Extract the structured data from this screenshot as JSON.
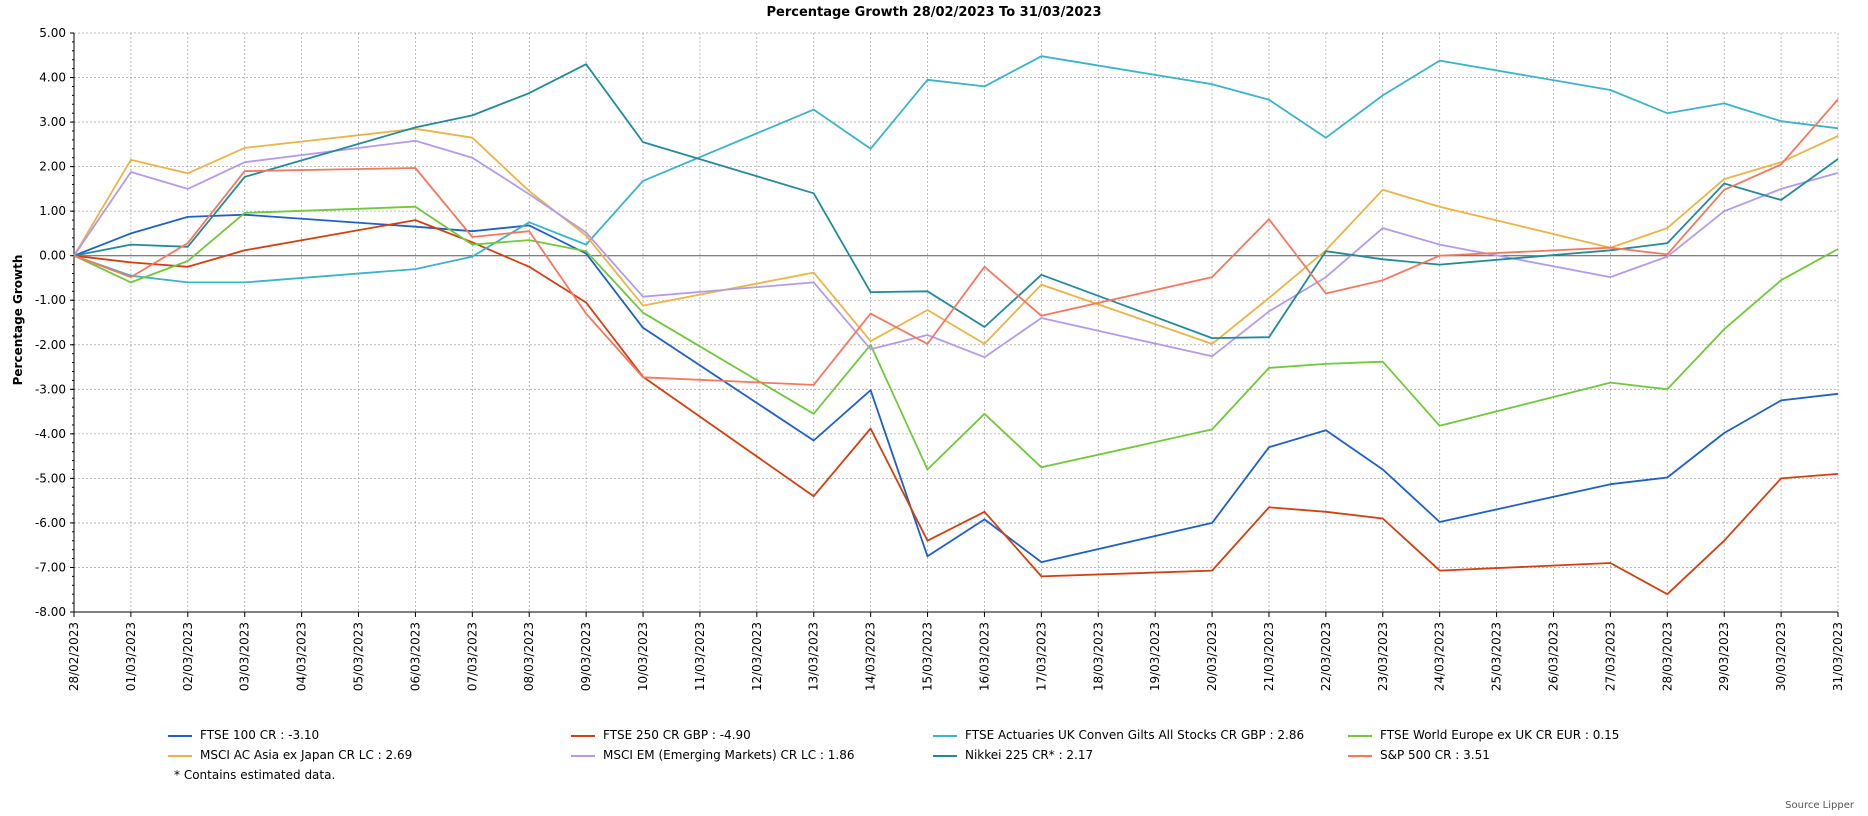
{
  "chart_data": {
    "type": "line",
    "title": "Percentage Growth 28/02/2023 To 31/03/2023",
    "ylabel": "Percentage Growth",
    "xlabel": "",
    "ylim": [
      -8,
      5
    ],
    "yticks": [
      "5.00",
      "4.00",
      "3.00",
      "2.00",
      "1.00",
      "0.00",
      "-1.00",
      "-2.00",
      "-3.00",
      "-4.00",
      "-5.00",
      "-6.00",
      "-7.00",
      "-8.00"
    ],
    "grid": true,
    "legend_position": "bottom",
    "categories": [
      "28/02/2023",
      "01/03/2023",
      "02/03/2023",
      "03/03/2023",
      "04/03/2023",
      "05/03/2023",
      "06/03/2023",
      "07/03/2023",
      "08/03/2023",
      "09/03/2023",
      "10/03/2023",
      "11/03/2023",
      "12/03/2023",
      "13/03/2023",
      "14/03/2023",
      "15/03/2023",
      "16/03/2023",
      "17/03/2023",
      "18/03/2023",
      "19/03/2023",
      "20/03/2023",
      "21/03/2023",
      "22/03/2023",
      "23/03/2023",
      "24/03/2023",
      "25/03/2023",
      "26/03/2023",
      "27/03/2023",
      "28/03/2023",
      "29/03/2023",
      "30/03/2023",
      "31/03/2023"
    ],
    "series": [
      {
        "name": "FTSE 100 CR : -3.10",
        "color": "#1f5fc8",
        "points": [
          [
            0,
            0.0
          ],
          [
            1,
            0.5
          ],
          [
            2,
            0.87
          ],
          [
            3,
            0.92
          ],
          [
            6,
            0.65
          ],
          [
            7,
            0.55
          ],
          [
            8,
            0.68
          ],
          [
            9,
            0.05
          ],
          [
            10,
            -1.62
          ],
          [
            13,
            -4.15
          ],
          [
            14,
            -3.02
          ],
          [
            15,
            -6.75
          ],
          [
            16,
            -5.92
          ],
          [
            17,
            -6.88
          ],
          [
            20,
            -6.0
          ],
          [
            21,
            -4.3
          ],
          [
            22,
            -3.92
          ],
          [
            23,
            -4.8
          ],
          [
            24,
            -5.98
          ],
          [
            27,
            -5.13
          ],
          [
            28,
            -4.98
          ],
          [
            29,
            -3.98
          ],
          [
            30,
            -3.25
          ],
          [
            31,
            -3.1
          ]
        ]
      },
      {
        "name": "FTSE 250 CR GBP : -4.90",
        "color": "#d14010",
        "points": [
          [
            0,
            0.0
          ],
          [
            1,
            -0.15
          ],
          [
            2,
            -0.25
          ],
          [
            3,
            0.12
          ],
          [
            6,
            0.8
          ],
          [
            7,
            0.3
          ],
          [
            8,
            -0.25
          ],
          [
            9,
            -1.05
          ],
          [
            10,
            -2.72
          ],
          [
            13,
            -5.4
          ],
          [
            14,
            -3.88
          ],
          [
            15,
            -6.4
          ],
          [
            16,
            -5.75
          ],
          [
            17,
            -7.2
          ],
          [
            20,
            -7.07
          ],
          [
            21,
            -5.65
          ],
          [
            22,
            -5.75
          ],
          [
            23,
            -5.9
          ],
          [
            24,
            -7.07
          ],
          [
            27,
            -6.9
          ],
          [
            28,
            -7.6
          ],
          [
            29,
            -6.4
          ],
          [
            30,
            -5.0
          ],
          [
            31,
            -4.9
          ]
        ]
      },
      {
        "name": "FTSE Actuaries UK Conven Gilts All Stocks CR GBP : 2.86",
        "color": "#3bb3c8",
        "points": [
          [
            0,
            0.0
          ],
          [
            1,
            -0.45
          ],
          [
            2,
            -0.6
          ],
          [
            3,
            -0.6
          ],
          [
            6,
            -0.3
          ],
          [
            7,
            -0.02
          ],
          [
            8,
            0.75
          ],
          [
            9,
            0.25
          ],
          [
            10,
            1.68
          ],
          [
            13,
            3.28
          ],
          [
            14,
            2.4
          ],
          [
            15,
            3.95
          ],
          [
            16,
            3.8
          ],
          [
            17,
            4.48
          ],
          [
            20,
            3.85
          ],
          [
            21,
            3.5
          ],
          [
            22,
            2.65
          ],
          [
            23,
            3.6
          ],
          [
            24,
            4.38
          ],
          [
            27,
            3.72
          ],
          [
            28,
            3.2
          ],
          [
            29,
            3.42
          ],
          [
            30,
            3.02
          ],
          [
            31,
            2.86
          ]
        ]
      },
      {
        "name": "FTSE World Europe ex UK CR EUR : 0.15",
        "color": "#70c83a",
        "points": [
          [
            0,
            0.0
          ],
          [
            1,
            -0.6
          ],
          [
            2,
            -0.12
          ],
          [
            3,
            0.96
          ],
          [
            6,
            1.1
          ],
          [
            7,
            0.25
          ],
          [
            8,
            0.35
          ],
          [
            9,
            0.1
          ],
          [
            10,
            -1.28
          ],
          [
            13,
            -3.55
          ],
          [
            14,
            -2.0
          ],
          [
            15,
            -4.8
          ],
          [
            16,
            -3.55
          ],
          [
            17,
            -4.75
          ],
          [
            20,
            -3.9
          ],
          [
            21,
            -2.52
          ],
          [
            22,
            -2.43
          ],
          [
            23,
            -2.38
          ],
          [
            24,
            -3.82
          ],
          [
            27,
            -2.85
          ],
          [
            28,
            -3.0
          ],
          [
            29,
            -1.65
          ],
          [
            30,
            -0.55
          ],
          [
            31,
            0.15
          ]
        ]
      },
      {
        "name": "MSCI AC Asia ex Japan CR LC : 2.69",
        "color": "#eab446",
        "points": [
          [
            0,
            0.0
          ],
          [
            1,
            2.15
          ],
          [
            2,
            1.85
          ],
          [
            3,
            2.42
          ],
          [
            6,
            2.85
          ],
          [
            7,
            2.65
          ],
          [
            8,
            1.45
          ],
          [
            9,
            0.45
          ],
          [
            10,
            -1.12
          ],
          [
            13,
            -0.38
          ],
          [
            14,
            -1.92
          ],
          [
            15,
            -1.22
          ],
          [
            16,
            -1.98
          ],
          [
            17,
            -0.65
          ],
          [
            20,
            -1.98
          ],
          [
            21,
            -0.95
          ],
          [
            22,
            0.12
          ],
          [
            23,
            1.48
          ],
          [
            24,
            1.1
          ],
          [
            27,
            0.18
          ],
          [
            28,
            0.62
          ],
          [
            29,
            1.72
          ],
          [
            30,
            2.1
          ],
          [
            31,
            2.69
          ]
        ]
      },
      {
        "name": "MSCI EM (Emerging Markets) CR LC : 1.86",
        "color": "#b49bea",
        "points": [
          [
            0,
            0.0
          ],
          [
            1,
            1.88
          ],
          [
            2,
            1.5
          ],
          [
            3,
            2.1
          ],
          [
            6,
            2.58
          ],
          [
            7,
            2.2
          ],
          [
            8,
            1.38
          ],
          [
            9,
            0.52
          ],
          [
            10,
            -0.92
          ],
          [
            13,
            -0.6
          ],
          [
            14,
            -2.1
          ],
          [
            15,
            -1.78
          ],
          [
            16,
            -2.28
          ],
          [
            17,
            -1.4
          ],
          [
            20,
            -2.26
          ],
          [
            21,
            -1.25
          ],
          [
            22,
            -0.48
          ],
          [
            23,
            0.62
          ],
          [
            24,
            0.25
          ],
          [
            27,
            -0.48
          ],
          [
            28,
            -0.02
          ],
          [
            29,
            1.0
          ],
          [
            30,
            1.5
          ],
          [
            31,
            1.86
          ]
        ]
      },
      {
        "name": "Nikkei 225 CR* : 2.17",
        "color": "#238a9a",
        "points": [
          [
            0,
            0.0
          ],
          [
            1,
            0.25
          ],
          [
            2,
            0.2
          ],
          [
            3,
            1.77
          ],
          [
            6,
            2.88
          ],
          [
            7,
            3.15
          ],
          [
            8,
            3.65
          ],
          [
            9,
            4.3
          ],
          [
            10,
            2.55
          ],
          [
            13,
            1.4
          ],
          [
            14,
            -0.82
          ],
          [
            15,
            -0.8
          ],
          [
            16,
            -1.6
          ],
          [
            17,
            -0.43
          ],
          [
            20,
            -1.85
          ],
          [
            21,
            -1.83
          ],
          [
            22,
            0.1
          ],
          [
            23,
            -0.08
          ],
          [
            24,
            -0.2
          ],
          [
            27,
            0.12
          ],
          [
            28,
            0.28
          ],
          [
            29,
            1.62
          ],
          [
            30,
            1.25
          ],
          [
            31,
            2.17
          ]
        ]
      },
      {
        "name": "S&P 500 CR : 3.51",
        "color": "#f47860",
        "points": [
          [
            0,
            0.0
          ],
          [
            1,
            -0.48
          ],
          [
            2,
            0.28
          ],
          [
            3,
            1.9
          ],
          [
            6,
            1.97
          ],
          [
            7,
            0.42
          ],
          [
            8,
            0.55
          ],
          [
            9,
            -1.3
          ],
          [
            10,
            -2.73
          ],
          [
            13,
            -2.9
          ],
          [
            14,
            -1.3
          ],
          [
            15,
            -1.98
          ],
          [
            16,
            -0.25
          ],
          [
            17,
            -1.35
          ],
          [
            20,
            -0.48
          ],
          [
            21,
            0.82
          ],
          [
            22,
            -0.85
          ],
          [
            23,
            -0.55
          ],
          [
            24,
            0.0
          ],
          [
            27,
            0.18
          ],
          [
            28,
            0.03
          ],
          [
            29,
            1.48
          ],
          [
            30,
            2.05
          ],
          [
            31,
            3.51
          ]
        ]
      }
    ]
  },
  "notes": {
    "estimated": "*  Contains estimated data.",
    "source": "Source Lipper"
  }
}
